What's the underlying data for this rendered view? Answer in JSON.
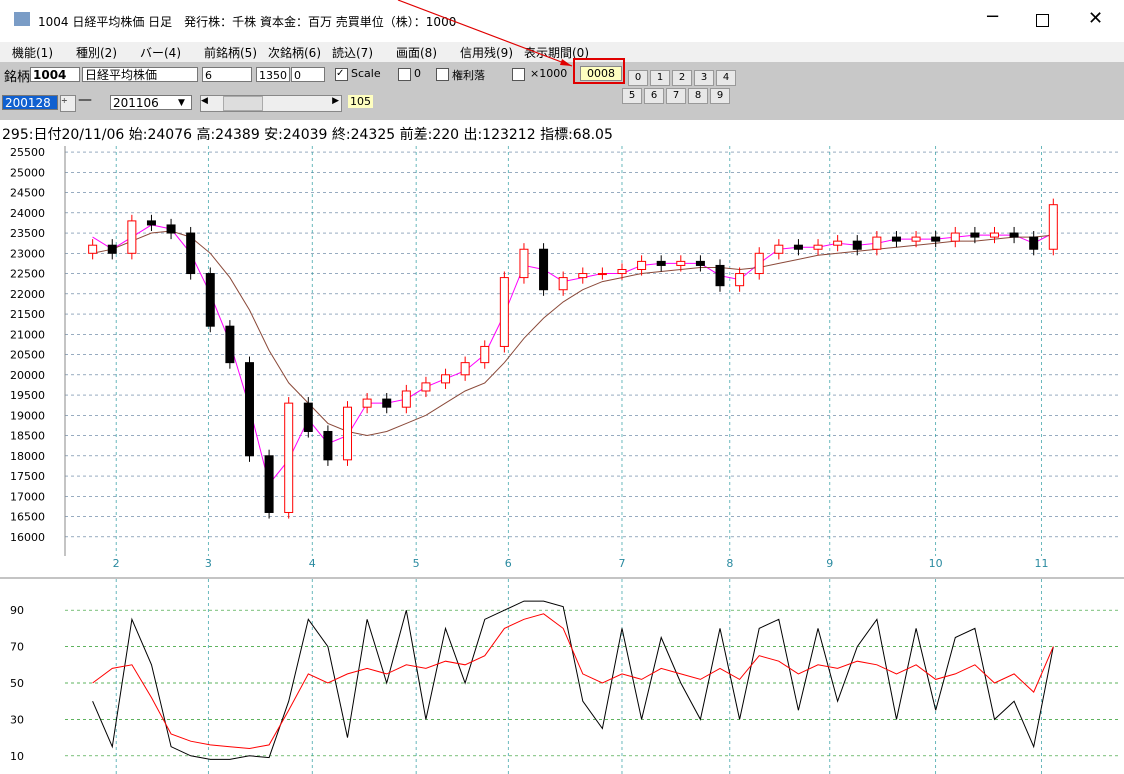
{
  "window": {
    "title": "1004 日経平均株価 日足　発行株：千株 資本金：百万 売買単位（株）：1000"
  },
  "menu": [
    "機能(1)",
    "種別(2)",
    "バー(4)",
    "前銘柄(5)",
    "次銘柄(6)",
    "読込(7)",
    "画面(8)",
    "信用残(9)",
    "表示期間(0)"
  ],
  "toolbar": {
    "label": "銘柄",
    "code": "1004",
    "name": "日経平均株価",
    "field1": "6",
    "field2": "1350",
    "field3": "0",
    "scale": "Scale",
    "check0": "0",
    "rights": "権利落",
    "x1000": "×1000",
    "highlight": "0008",
    "buttons_row1": [
      "0",
      "1",
      "2",
      "3",
      "4"
    ],
    "buttons_row2": [
      "5",
      "6",
      "7",
      "8",
      "9"
    ],
    "from": "200128",
    "to": "201106",
    "count": "105"
  },
  "info": "295:日付20/11/06 始:24076 高:24389 安:24039 終:24325 前差:220 出:123212 指標:68.05",
  "chart_data": [
    {
      "type": "candlestick",
      "xlim": [
        -0.9,
        52.3
      ],
      "ylim": [
        15550,
        25600
      ],
      "yticks": [
        16000,
        16500,
        17000,
        17500,
        18000,
        18500,
        19000,
        19500,
        20000,
        20500,
        21000,
        21500,
        22000,
        22500,
        23000,
        23500,
        24000,
        24500,
        25000,
        25500
      ],
      "xticks": [
        {
          "value": 1.2,
          "label": "2"
        },
        {
          "value": 5.9,
          "label": "3"
        },
        {
          "value": 11.2,
          "label": "4"
        },
        {
          "value": 16.5,
          "label": "5"
        },
        {
          "value": 21.2,
          "label": "6"
        },
        {
          "value": 27,
          "label": "7"
        },
        {
          "value": 32.5,
          "label": "8"
        },
        {
          "value": 37.6,
          "label": "9"
        },
        {
          "value": 43,
          "label": "10"
        },
        {
          "value": 48.4,
          "label": "11"
        }
      ],
      "grid": true,
      "up_color": "#ff0000",
      "down_color": "#000000",
      "open": [
        23000,
        23200,
        23000,
        23800,
        23700,
        23500,
        22500,
        21200,
        20300,
        18000,
        16600,
        19300,
        18600,
        17900,
        19200,
        19400,
        19200,
        19600,
        19800,
        20000,
        20300,
        20700,
        22400,
        23100,
        22100,
        22400,
        22500,
        22500,
        22600,
        22800,
        22700,
        22800,
        22700,
        22200,
        22500,
        23000,
        23200,
        23100,
        23200,
        23300,
        23100,
        23400,
        23300,
        23400,
        23300,
        23500,
        23400,
        23500,
        23400,
        23100
      ],
      "high": [
        23350,
        23350,
        23950,
        23950,
        23850,
        23650,
        22650,
        21350,
        20450,
        18150,
        19450,
        19450,
        18750,
        19350,
        19550,
        19550,
        19750,
        19950,
        20150,
        20450,
        20850,
        22550,
        23250,
        23250,
        22550,
        22650,
        22650,
        22750,
        22950,
        22950,
        22950,
        22950,
        22850,
        22650,
        23150,
        23350,
        23350,
        23350,
        23450,
        23450,
        23550,
        23550,
        23550,
        23550,
        23650,
        23650,
        23650,
        23650,
        23550,
        24350
      ],
      "low": [
        22850,
        22850,
        22850,
        23550,
        23350,
        22350,
        21050,
        20150,
        17850,
        16450,
        16450,
        18450,
        17750,
        17750,
        19050,
        19050,
        19050,
        19450,
        19650,
        19850,
        20150,
        20550,
        22250,
        21950,
        21950,
        22250,
        22350,
        22350,
        22450,
        22550,
        22550,
        22550,
        22050,
        22050,
        22350,
        22850,
        22950,
        22950,
        23050,
        22950,
        22950,
        23150,
        23150,
        23150,
        23150,
        23250,
        23250,
        23250,
        22950,
        22950
      ],
      "close": [
        23200,
        23000,
        23800,
        23700,
        23500,
        22500,
        21200,
        20300,
        18000,
        16600,
        19300,
        18600,
        17900,
        19200,
        19400,
        19200,
        19600,
        19800,
        20000,
        20300,
        20700,
        22400,
        23100,
        22100,
        22400,
        22500,
        22500,
        22600,
        22800,
        22700,
        22800,
        22700,
        22200,
        22500,
        23000,
        23200,
        23100,
        23200,
        23300,
        23100,
        23400,
        23300,
        23400,
        23300,
        23500,
        23400,
        23500,
        23400,
        23100,
        24200
      ],
      "series": [
        {
          "color": "#ff00ff",
          "values": [
            23400,
            23100,
            23400,
            23700,
            23600,
            23000,
            22000,
            20800,
            19200,
            17300,
            17900,
            18900,
            18300,
            18500,
            19300,
            19300,
            19400,
            19700,
            19900,
            20100,
            20500,
            21500,
            22700,
            22600,
            22300,
            22400,
            22500,
            22500,
            22700,
            22750,
            22750,
            22750,
            22450,
            22350,
            22750,
            23100,
            23150,
            23150,
            23250,
            23200,
            23250,
            23350,
            23350,
            23350,
            23400,
            23450,
            23450,
            23450,
            23250,
            23500
          ]
        },
        {
          "color": "#8b4a3a",
          "values": [
            23000,
            23100,
            23300,
            23500,
            23550,
            23400,
            23000,
            22400,
            21600,
            20600,
            19800,
            19300,
            18800,
            18600,
            18500,
            18600,
            18800,
            19000,
            19300,
            19600,
            19800,
            20300,
            20900,
            21400,
            21800,
            22100,
            22300,
            22400,
            22500,
            22550,
            22600,
            22650,
            22650,
            22600,
            22650,
            22750,
            22850,
            22950,
            23000,
            23050,
            23100,
            23150,
            23200,
            23250,
            23300,
            23300,
            23350,
            23400,
            23400,
            23450
          ]
        }
      ]
    },
    {
      "type": "line",
      "xlim": [
        -0.9,
        52.3
      ],
      "ylim": [
        0,
        100
      ],
      "yticks": [
        90,
        70,
        50,
        30,
        10
      ],
      "grid": true,
      "series": [
        {
          "color": "#000000",
          "values": [
            40,
            15,
            85,
            60,
            15,
            10,
            8,
            8,
            10,
            9,
            40,
            85,
            70,
            20,
            85,
            50,
            90,
            30,
            80,
            50,
            85,
            90,
            95,
            95,
            92,
            40,
            25,
            80,
            30,
            75,
            50,
            30,
            80,
            30,
            80,
            85,
            35,
            80,
            40,
            70,
            85,
            30,
            80,
            35,
            75,
            80,
            30,
            40,
            15,
            70
          ]
        },
        {
          "color": "#ff0000",
          "values": [
            50,
            58,
            60,
            42,
            22,
            18,
            16,
            15,
            14,
            16,
            35,
            55,
            50,
            55,
            58,
            55,
            60,
            58,
            62,
            60,
            65,
            80,
            85,
            88,
            80,
            55,
            50,
            55,
            52,
            58,
            55,
            52,
            58,
            52,
            65,
            62,
            55,
            60,
            58,
            62,
            60,
            55,
            60,
            52,
            55,
            60,
            50,
            55,
            45,
            70
          ]
        }
      ]
    }
  ]
}
